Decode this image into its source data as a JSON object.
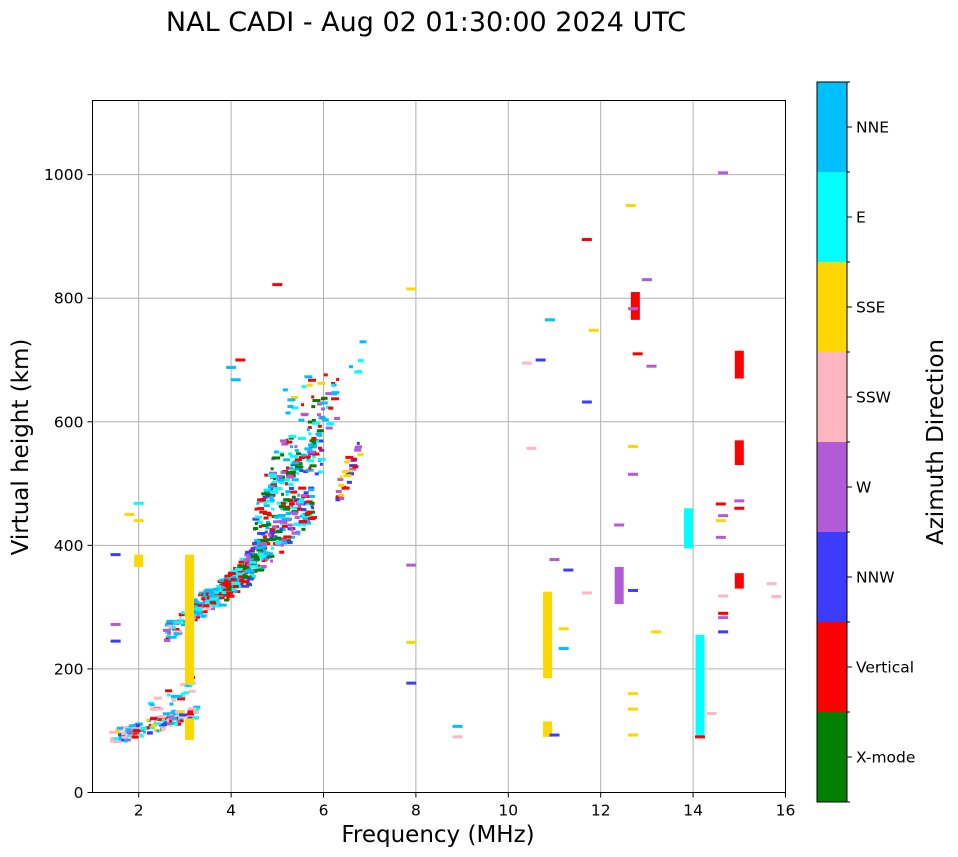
{
  "chart_data": {
    "type": "scatter",
    "title": "NAL CADI - Aug 02 01:30:00 2024 UTC",
    "xlabel": "Frequency (MHz)",
    "ylabel": "Virtual height (km)",
    "xlim": [
      1,
      16
    ],
    "ylim": [
      0,
      1120
    ],
    "xticks": [
      2,
      4,
      6,
      8,
      10,
      12,
      14,
      16
    ],
    "yticks": [
      0,
      200,
      400,
      600,
      800,
      1000
    ],
    "grid": true,
    "colorbar": {
      "title": "Azimuth Direction",
      "categories": [
        {
          "name": "X-mode",
          "color": "#008000"
        },
        {
          "name": "Vertical",
          "color": "#ff0000"
        },
        {
          "name": "NNW",
          "color": "#3c3cff"
        },
        {
          "name": "W",
          "color": "#b35ad6"
        },
        {
          "name": "SSW",
          "color": "#ffb6c1"
        },
        {
          "name": "SSE",
          "color": "#ffd700"
        },
        {
          "name": "E",
          "color": "#00ffff"
        },
        {
          "name": "NNE",
          "color": "#00bfff"
        }
      ]
    },
    "spread_regions": [
      {
        "f0": 1.4,
        "f1": 3.3,
        "h0": 88,
        "h1": 132,
        "n": 130,
        "cats": [
          "Vertical",
          "W",
          "SSW",
          "SSE",
          "E",
          "NNE",
          "NNW"
        ]
      },
      {
        "f0": 2.1,
        "f1": 3.2,
        "h0": 130,
        "h1": 175,
        "n": 25,
        "cats": [
          "E",
          "NNE",
          "SSW",
          "Vertical"
        ]
      },
      {
        "f0": 2.6,
        "f1": 3.8,
        "h0": 260,
        "h1": 320,
        "n": 90,
        "cats": [
          "Vertical",
          "NNE",
          "E",
          "SSW",
          "W"
        ]
      },
      {
        "f0": 3.1,
        "f1": 4.2,
        "h0": 295,
        "h1": 350,
        "n": 130,
        "cats": [
          "NNE",
          "E",
          "Vertical",
          "NNE"
        ]
      },
      {
        "f0": 3.8,
        "f1": 4.8,
        "h0": 320,
        "h1": 400,
        "n": 140,
        "cats": [
          "Vertical",
          "Vertical",
          "NNE",
          "X-mode",
          "E"
        ]
      },
      {
        "f0": 4.3,
        "f1": 5.8,
        "h0": 360,
        "h1": 470,
        "n": 160,
        "cats": [
          "Vertical",
          "X-mode",
          "NNE",
          "E",
          "NNW",
          "W"
        ]
      },
      {
        "f0": 4.5,
        "f1": 6.0,
        "h0": 430,
        "h1": 560,
        "n": 130,
        "cats": [
          "Vertical",
          "X-mode",
          "E",
          "NNE",
          "NNW"
        ]
      },
      {
        "f0": 4.8,
        "f1": 6.3,
        "h0": 500,
        "h1": 640,
        "n": 90,
        "cats": [
          "X-mode",
          "E",
          "NNE",
          "Vertical",
          "W"
        ]
      },
      {
        "f0": 6.3,
        "f1": 6.8,
        "h0": 480,
        "h1": 560,
        "n": 30,
        "cats": [
          "SSE",
          "W",
          "NNW",
          "Vertical"
        ]
      },
      {
        "f0": 5.0,
        "f1": 6.9,
        "h0": 620,
        "h1": 710,
        "n": 20,
        "cats": [
          "E",
          "NNE",
          "Vertical",
          "SSE"
        ]
      }
    ],
    "bars": [
      {
        "f": 3.1,
        "h0": 175,
        "h1": 385,
        "cat": "SSE"
      },
      {
        "f": 3.1,
        "h0": 85,
        "h1": 120,
        "cat": "SSE"
      },
      {
        "f": 2.0,
        "h0": 365,
        "h1": 385,
        "cat": "SSE"
      },
      {
        "f": 10.85,
        "h0": 185,
        "h1": 325,
        "cat": "SSE"
      },
      {
        "f": 10.85,
        "h0": 90,
        "h1": 115,
        "cat": "SSE"
      },
      {
        "f": 14.15,
        "h0": 90,
        "h1": 255,
        "cat": "E"
      },
      {
        "f": 13.9,
        "h0": 395,
        "h1": 460,
        "cat": "E"
      },
      {
        "f": 12.4,
        "h0": 305,
        "h1": 365,
        "cat": "W"
      },
      {
        "f": 12.75,
        "h0": 765,
        "h1": 810,
        "cat": "Vertical"
      },
      {
        "f": 15.0,
        "h0": 530,
        "h1": 570,
        "cat": "Vertical"
      },
      {
        "f": 15.0,
        "h0": 670,
        "h1": 715,
        "cat": "Vertical"
      },
      {
        "f": 15.0,
        "h0": 330,
        "h1": 355,
        "cat": "Vertical"
      }
    ],
    "points": [
      {
        "f": 1.5,
        "h": 385,
        "cat": "NNW"
      },
      {
        "f": 1.5,
        "h": 272,
        "cat": "W"
      },
      {
        "f": 1.5,
        "h": 245,
        "cat": "NNW"
      },
      {
        "f": 1.8,
        "h": 450,
        "cat": "SSE"
      },
      {
        "f": 2.0,
        "h": 440,
        "cat": "SSE"
      },
      {
        "f": 2.0,
        "h": 468,
        "cat": "E"
      },
      {
        "f": 4.0,
        "h": 688,
        "cat": "NNE"
      },
      {
        "f": 4.1,
        "h": 668,
        "cat": "NNE"
      },
      {
        "f": 4.2,
        "h": 700,
        "cat": "Vertical"
      },
      {
        "f": 5.0,
        "h": 822,
        "cat": "Vertical"
      },
      {
        "f": 7.9,
        "h": 815,
        "cat": "SSE"
      },
      {
        "f": 7.9,
        "h": 368,
        "cat": "W"
      },
      {
        "f": 7.9,
        "h": 243,
        "cat": "SSE"
      },
      {
        "f": 7.9,
        "h": 177,
        "cat": "NNW"
      },
      {
        "f": 8.9,
        "h": 107,
        "cat": "NNE"
      },
      {
        "f": 8.9,
        "h": 90,
        "cat": "SSW"
      },
      {
        "f": 10.4,
        "h": 695,
        "cat": "SSW"
      },
      {
        "f": 10.7,
        "h": 700,
        "cat": "NNW"
      },
      {
        "f": 10.9,
        "h": 765,
        "cat": "NNE"
      },
      {
        "f": 10.5,
        "h": 557,
        "cat": "SSW"
      },
      {
        "f": 11.0,
        "h": 377,
        "cat": "W"
      },
      {
        "f": 11.3,
        "h": 360,
        "cat": "NNW"
      },
      {
        "f": 11.2,
        "h": 265,
        "cat": "SSE"
      },
      {
        "f": 11.2,
        "h": 233,
        "cat": "NNE"
      },
      {
        "f": 11.0,
        "h": 93,
        "cat": "NNW"
      },
      {
        "f": 11.7,
        "h": 895,
        "cat": "Vertical"
      },
      {
        "f": 11.85,
        "h": 748,
        "cat": "SSE"
      },
      {
        "f": 11.7,
        "h": 632,
        "cat": "NNW"
      },
      {
        "f": 11.7,
        "h": 323,
        "cat": "SSW"
      },
      {
        "f": 12.65,
        "h": 950,
        "cat": "SSE"
      },
      {
        "f": 12.7,
        "h": 783,
        "cat": "W"
      },
      {
        "f": 13.0,
        "h": 830,
        "cat": "W"
      },
      {
        "f": 12.8,
        "h": 710,
        "cat": "Vertical"
      },
      {
        "f": 13.1,
        "h": 690,
        "cat": "W"
      },
      {
        "f": 12.7,
        "h": 560,
        "cat": "SSE"
      },
      {
        "f": 12.7,
        "h": 515,
        "cat": "W"
      },
      {
        "f": 12.4,
        "h": 433,
        "cat": "W"
      },
      {
        "f": 12.7,
        "h": 327,
        "cat": "NNW"
      },
      {
        "f": 13.2,
        "h": 260,
        "cat": "SSE"
      },
      {
        "f": 12.7,
        "h": 160,
        "cat": "SSE"
      },
      {
        "f": 12.7,
        "h": 135,
        "cat": "SSE"
      },
      {
        "f": 12.7,
        "h": 93,
        "cat": "SSE"
      },
      {
        "f": 14.65,
        "h": 1003,
        "cat": "W"
      },
      {
        "f": 14.6,
        "h": 467,
        "cat": "Vertical"
      },
      {
        "f": 14.65,
        "h": 448,
        "cat": "W"
      },
      {
        "f": 14.6,
        "h": 440,
        "cat": "SSE"
      },
      {
        "f": 14.6,
        "h": 413,
        "cat": "W"
      },
      {
        "f": 15.0,
        "h": 472,
        "cat": "W"
      },
      {
        "f": 15.0,
        "h": 460,
        "cat": "Vertical"
      },
      {
        "f": 14.65,
        "h": 318,
        "cat": "SSW"
      },
      {
        "f": 14.65,
        "h": 290,
        "cat": "Vertical"
      },
      {
        "f": 14.65,
        "h": 283,
        "cat": "W"
      },
      {
        "f": 14.65,
        "h": 260,
        "cat": "NNW"
      },
      {
        "f": 14.4,
        "h": 128,
        "cat": "SSW"
      },
      {
        "f": 14.15,
        "h": 90,
        "cat": "Vertical"
      },
      {
        "f": 15.7,
        "h": 338,
        "cat": "SSW"
      },
      {
        "f": 15.8,
        "h": 317,
        "cat": "SSW"
      }
    ]
  }
}
